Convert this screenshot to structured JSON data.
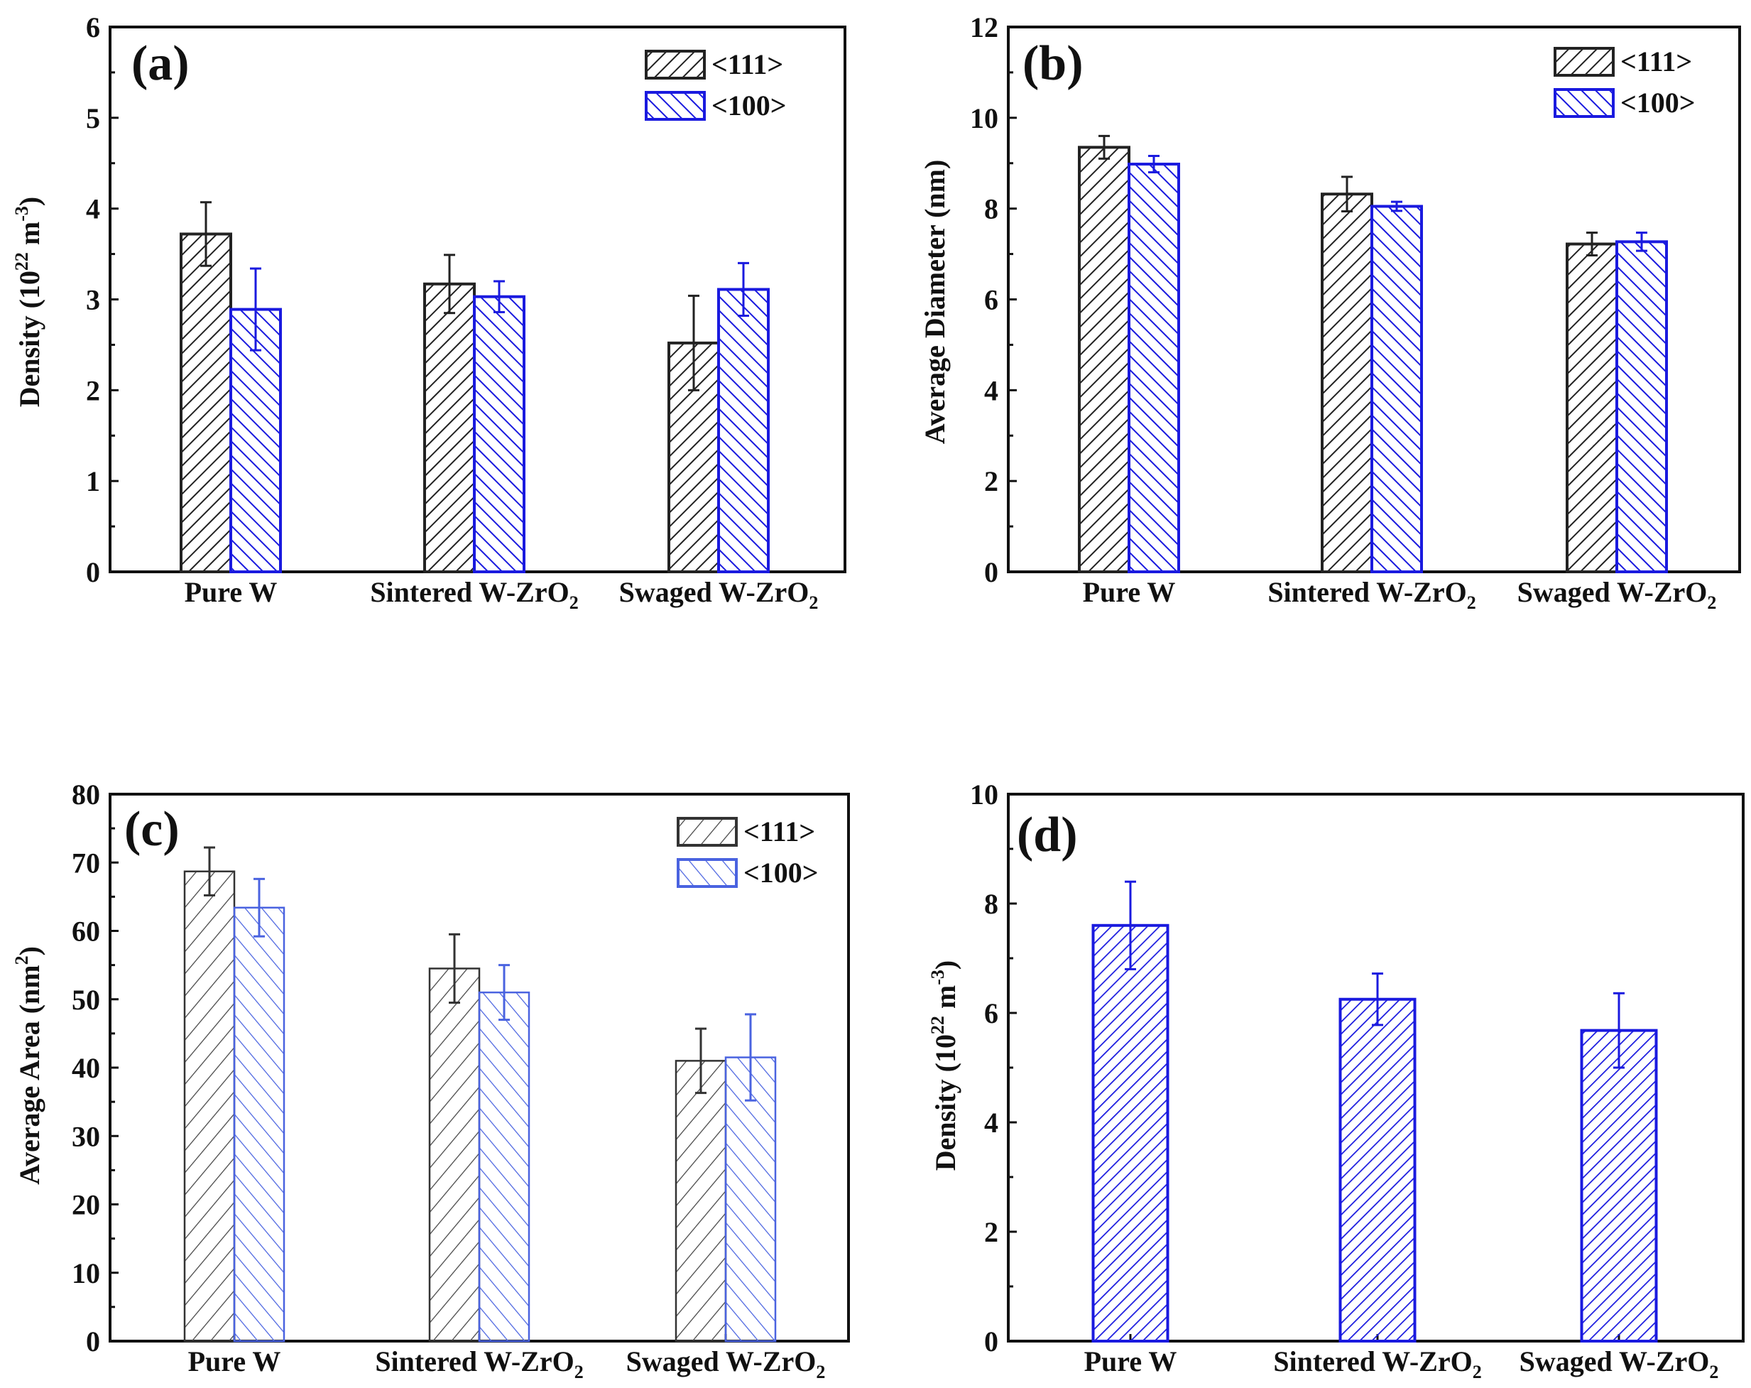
{
  "figure": {
    "colors": {
      "black_series": "#222222",
      "blue_series": "#1a1adf",
      "light_black_series": "#333333",
      "light_blue_series": "#4a63e0"
    }
  },
  "chart_data": [
    {
      "type": "bar",
      "panel": "(a)",
      "categories": [
        "Pure W",
        "Sintered W-ZrO",
        "Swaged W-ZrO"
      ],
      "category_subscripts": [
        "",
        "2",
        "2"
      ],
      "ylabel": "Density (10",
      "ylabel_sup": "22",
      "ylabel_unit": " m",
      "ylabel_unit_sup": "-3",
      "ylabel_close": ")",
      "xlabel": "",
      "ylim": [
        0,
        6
      ],
      "yticks": [
        0,
        1,
        2,
        3,
        4,
        5,
        6
      ],
      "legend_position": "top-right",
      "series": [
        {
          "name": "<111>",
          "style": "black",
          "values": [
            3.72,
            3.17,
            2.52
          ],
          "errors": [
            0.35,
            0.32,
            0.52
          ]
        },
        {
          "name": "<100>",
          "style": "blue",
          "values": [
            2.89,
            3.03,
            3.11
          ],
          "errors": [
            0.45,
            0.17,
            0.29
          ]
        }
      ]
    },
    {
      "type": "bar",
      "panel": "(b)",
      "categories": [
        "Pure W",
        "Sintered W-ZrO",
        "Swaged W-ZrO"
      ],
      "category_subscripts": [
        "",
        "2",
        "2"
      ],
      "ylabel": "Average Diameter (nm)",
      "xlabel": "",
      "ylim": [
        0,
        12
      ],
      "yticks": [
        0,
        2,
        4,
        6,
        8,
        10,
        12
      ],
      "legend_position": "top-right",
      "series": [
        {
          "name": "<111>",
          "style": "black",
          "values": [
            9.35,
            8.32,
            7.22
          ],
          "errors": [
            0.25,
            0.38,
            0.25
          ]
        },
        {
          "name": "<100>",
          "style": "blue",
          "values": [
            8.98,
            8.05,
            7.27
          ],
          "errors": [
            0.18,
            0.1,
            0.2
          ]
        }
      ]
    },
    {
      "type": "bar",
      "panel": "(c)",
      "categories": [
        "Pure W",
        "Sintered W-ZrO",
        "Swaged W-ZrO"
      ],
      "category_subscripts": [
        "",
        "2",
        "2"
      ],
      "ylabel": "Average Area (nm",
      "ylabel_sup": "2",
      "ylabel_close": ")",
      "xlabel": "",
      "ylim": [
        0,
        80
      ],
      "yticks": [
        0,
        10,
        20,
        30,
        40,
        50,
        60,
        70,
        80
      ],
      "legend_position": "top-right",
      "series": [
        {
          "name": "<111>",
          "style": "light-black",
          "values": [
            68.7,
            54.5,
            41
          ],
          "errors": [
            3.5,
            5,
            4.7
          ]
        },
        {
          "name": "<100>",
          "style": "light-blue",
          "values": [
            63.4,
            51,
            41.5
          ],
          "errors": [
            4.2,
            4,
            6.3
          ]
        }
      ]
    },
    {
      "type": "bar",
      "panel": "(d)",
      "categories": [
        "Pure W",
        "Sintered W-ZrO",
        "Swaged W-ZrO"
      ],
      "category_subscripts": [
        "",
        "2",
        "2"
      ],
      "ylabel": "Density (10",
      "ylabel_sup": "22",
      "ylabel_unit": " m",
      "ylabel_unit_sup": "-3",
      "ylabel_close": ")",
      "xlabel": "",
      "ylim": [
        0,
        10
      ],
      "yticks": [
        0,
        2,
        4,
        6,
        8,
        10
      ],
      "legend_position": "none",
      "series": [
        {
          "name": "",
          "style": "blue",
          "values": [
            7.6,
            6.25,
            5.68
          ],
          "errors": [
            0.8,
            0.47,
            0.68
          ]
        }
      ]
    }
  ]
}
